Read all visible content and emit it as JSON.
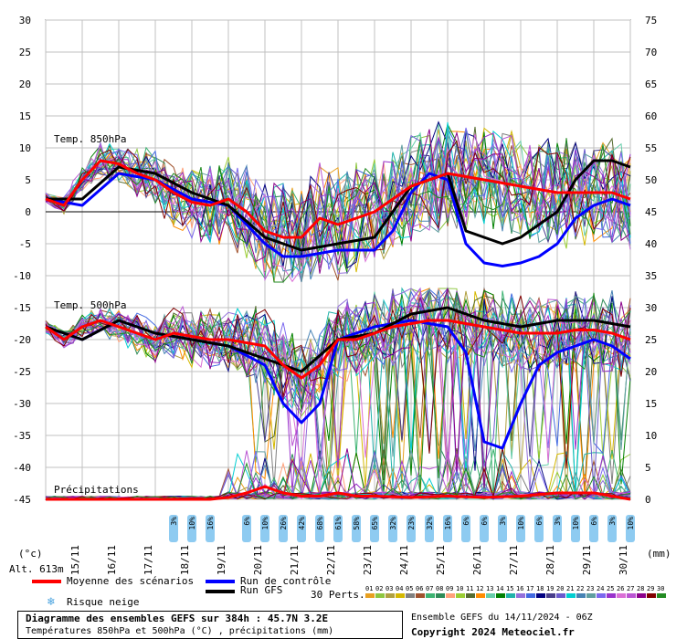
{
  "chart_data": {
    "type": "line",
    "categories": [
      "15/11",
      "16/11",
      "17/11",
      "18/11",
      "19/11",
      "20/11",
      "21/11",
      "22/11",
      "23/11",
      "24/11",
      "25/11",
      "26/11",
      "27/11",
      "28/11",
      "29/11",
      "30/11"
    ],
    "left_axis": {
      "unit": "(°c)",
      "ticks": [
        30,
        25,
        20,
        15,
        10,
        5,
        0,
        -5,
        -10,
        -15,
        -20,
        -25,
        -30,
        -35,
        -40,
        -45
      ],
      "range": [
        -45,
        30
      ]
    },
    "right_axis": {
      "unit": "(mm)",
      "ticks": [
        75,
        70,
        65,
        60,
        55,
        50,
        45,
        40,
        35,
        30,
        25,
        20,
        15,
        10,
        5,
        0
      ],
      "range": [
        0,
        75
      ]
    },
    "panel_labels": {
      "t850": "Temp. 850hPa",
      "t500": "Temp. 500hPa",
      "precip": "Précipitations"
    },
    "altitude": "Alt. 613m",
    "grid": true,
    "series": [
      {
        "name": "Moyenne des scénarios",
        "panel": "t850",
        "color": "#ff0000",
        "x": [
          0,
          0.5,
          1,
          1.5,
          2,
          2.5,
          3,
          3.5,
          4,
          4.5,
          5,
          5.5,
          6,
          6.5,
          7,
          7.5,
          8,
          8.5,
          9,
          9.5,
          10,
          10.5,
          11,
          11.5,
          12,
          12.5,
          13,
          13.5,
          14,
          14.5,
          15,
          15.5,
          16
        ],
        "values": [
          2,
          1,
          5,
          8,
          7.5,
          6,
          5,
          3,
          1.5,
          1,
          2,
          0,
          -3,
          -4,
          -4,
          -1,
          -2,
          -1,
          0,
          2,
          4,
          5,
          6,
          5.5,
          5,
          4.5,
          4,
          3.5,
          3,
          3,
          3,
          3,
          2
        ]
      },
      {
        "name": "Run de contrôle",
        "panel": "t850",
        "color": "#0000ff",
        "x": [
          0,
          1,
          2,
          3,
          4,
          5,
          6,
          6.5,
          7,
          8,
          9,
          9.5,
          10,
          10.5,
          11,
          11.5,
          12,
          12.5,
          13,
          13.5,
          14,
          14.5,
          15,
          15.5,
          16
        ],
        "values": [
          2,
          1,
          6,
          5,
          2,
          1,
          -5,
          -7,
          -7,
          -6,
          -6,
          -3,
          3,
          6,
          5,
          -5,
          -8,
          -8.5,
          -8,
          -7,
          -5,
          -1,
          1,
          2,
          1
        ]
      },
      {
        "name": "Run GFS",
        "panel": "t850",
        "color": "#000000",
        "x": [
          0,
          1,
          2,
          3,
          4,
          5,
          6,
          7,
          8,
          9,
          10,
          11,
          11.5,
          12,
          12.5,
          13,
          13.5,
          14,
          14.5,
          15,
          15.5,
          16
        ],
        "values": [
          2,
          2,
          7,
          6,
          3,
          1,
          -4,
          -6,
          -5,
          -4,
          4,
          6,
          -3,
          -4,
          -5,
          -4,
          -2,
          0,
          5,
          8,
          8,
          7
        ]
      },
      {
        "name": "Moyenne des scénarios",
        "panel": "t500",
        "color": "#ff0000",
        "x": [
          0,
          0.5,
          1,
          1.5,
          2,
          2.5,
          3,
          3.5,
          4,
          4.5,
          5,
          5.5,
          6,
          6.5,
          7,
          7.5,
          8,
          8.5,
          9,
          9.5,
          10,
          10.5,
          11,
          11.5,
          12,
          12.5,
          13,
          13.5,
          14,
          14.5,
          15,
          15.5,
          16
        ],
        "values": [
          -18,
          -20,
          -18,
          -17,
          -18,
          -19,
          -20,
          -19,
          -19.5,
          -20,
          -20,
          -20.5,
          -21,
          -24,
          -26,
          -24,
          -20,
          -20,
          -19,
          -18,
          -17.5,
          -17,
          -17,
          -17.5,
          -18,
          -18.5,
          -19,
          -19,
          -19,
          -18.5,
          -18.5,
          -19,
          -20
        ]
      },
      {
        "name": "Run de contrôle",
        "panel": "t500",
        "color": "#0000ff",
        "x": [
          0,
          1,
          2,
          3,
          4,
          5,
          6,
          6.5,
          7,
          7.5,
          8,
          9,
          10,
          11,
          11.5,
          12,
          12.5,
          13,
          13.5,
          14,
          14.5,
          15,
          15.5,
          16
        ],
        "values": [
          -18,
          -20,
          -17,
          -19,
          -20,
          -21,
          -24,
          -30,
          -33,
          -30,
          -20,
          -18,
          -17,
          -18,
          -22,
          -36,
          -37,
          -30,
          -24,
          -22,
          -21,
          -20,
          -21,
          -23
        ]
      },
      {
        "name": "Run GFS",
        "panel": "t500",
        "color": "#000000",
        "x": [
          0,
          1,
          2,
          3,
          4,
          5,
          6,
          7,
          8,
          9,
          10,
          11,
          12,
          13,
          14,
          15,
          16
        ],
        "values": [
          -18,
          -20,
          -17,
          -19,
          -20,
          -21,
          -23,
          -25,
          -20,
          -19,
          -16,
          -15,
          -17,
          -18,
          -17,
          -17,
          -18
        ]
      },
      {
        "name": "Moyenne des scénarios",
        "panel": "precip",
        "color": "#ff0000",
        "x": [
          0,
          1,
          2,
          3,
          4,
          4.5,
          5,
          5.5,
          6,
          6.5,
          7,
          7.5,
          8,
          8.5,
          9,
          10,
          11,
          12,
          13,
          14,
          15,
          16
        ],
        "values": [
          0,
          0,
          0,
          0,
          0,
          0,
          0.3,
          1,
          2,
          1,
          0.5,
          0.5,
          1,
          0.5,
          0.5,
          0.3,
          0.5,
          0.3,
          0.5,
          1,
          1,
          0
        ]
      }
    ],
    "snow_risk": {
      "x": [
        3.5,
        4,
        4.5,
        5.5,
        6,
        6.5,
        7,
        7.5,
        8,
        8.5,
        9,
        9.5,
        10,
        10.5,
        11,
        11.5,
        12,
        12.5,
        13,
        13.5,
        14,
        14.5,
        15,
        15.5,
        16
      ],
      "labels": [
        "3%",
        "10%",
        "16%",
        "6%",
        "10%",
        "26%",
        "42%",
        "68%",
        "61%",
        "58%",
        "65%",
        "32%",
        "23%",
        "32%",
        "16%",
        "6%",
        "6%",
        "3%",
        "10%",
        "6%",
        "3%",
        "10%",
        "6%",
        "3%",
        "10%"
      ]
    },
    "perturbation_count": "30 Perts.",
    "perturbation_ids": [
      "01",
      "02",
      "03",
      "04",
      "05",
      "06",
      "07",
      "08",
      "09",
      "10",
      "11",
      "12",
      "13",
      "14",
      "15",
      "16",
      "17",
      "18",
      "19",
      "20",
      "21",
      "22",
      "23",
      "24",
      "25",
      "26",
      "27",
      "28",
      "29",
      "30"
    ]
  },
  "legend": {
    "mean": "Moyenne des scénarios",
    "control": "Run de contrôle",
    "gfs": "Run GFS",
    "snow": "Risque neige"
  },
  "colors": {
    "mean": "#ff0000",
    "control": "#0000ff",
    "gfs": "#000000",
    "grid": "#c0c0c0",
    "snow": "#8ecbf1",
    "perts": [
      "#e8a020",
      "#8dc63f",
      "#b0a040",
      "#d4b800",
      "#808080",
      "#a0522d",
      "#3cb371",
      "#2e8b57",
      "#ffa07a",
      "#9acd32",
      "#556b2f",
      "#ff8c00",
      "#66cdaa",
      "#008000",
      "#20b2aa",
      "#9370db",
      "#4169e1",
      "#000080",
      "#483d8b",
      "#6a5acd",
      "#00ced1",
      "#4682b4",
      "#5f9ea0",
      "#7b68ee",
      "#9932cc",
      "#da70d6",
      "#ba55d3",
      "#8b008b",
      "#800000",
      "#228b22"
    ]
  },
  "footer": {
    "title": "Diagramme des ensembles GEFS sur 384h : 45.7N 3.2E",
    "subtitle": "Températures 850hPa et 500hPa (°C) , précipitations (mm)",
    "run_info": "Ensemble GEFS du 14/11/2024 - 06Z",
    "copyright": "Copyright 2024 Meteociel.fr"
  }
}
